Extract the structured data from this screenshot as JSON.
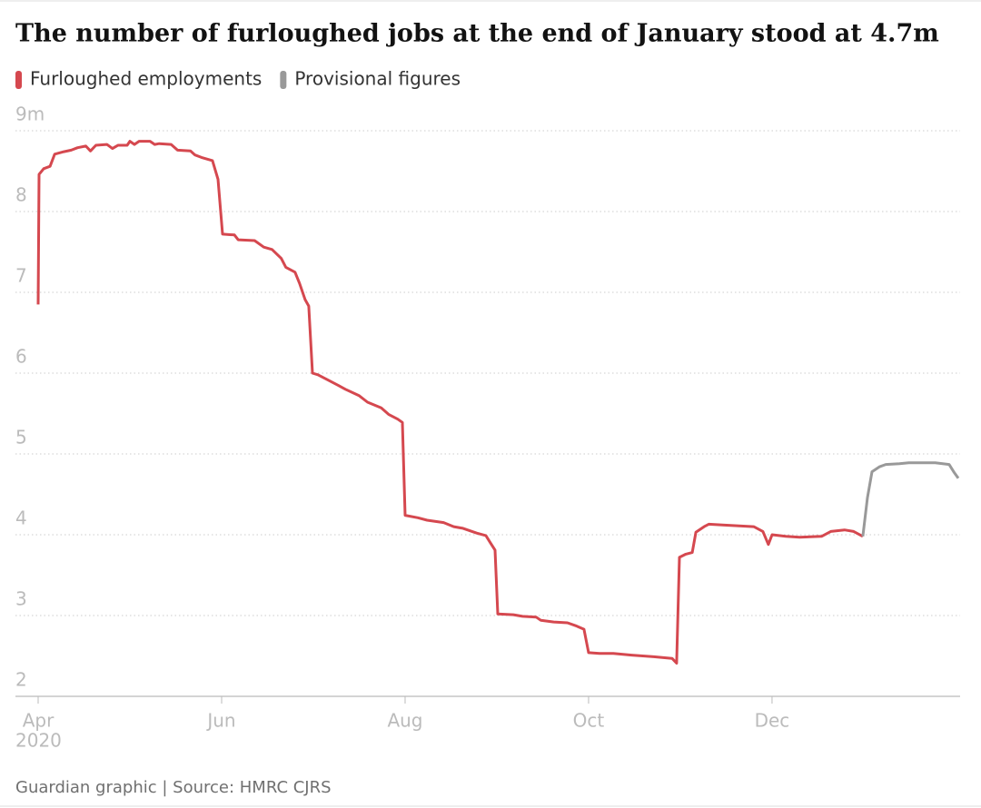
{
  "chart_data": {
    "type": "line",
    "title": "The number of furloughed jobs at the end of January stood at 4.7m",
    "source": "Guardian graphic | Source: HMRC CJRS",
    "xtick_year": "2020",
    "xlim": [
      0,
      10.05
    ],
    "xticks": [
      {
        "value": 0,
        "label": "Apr"
      },
      {
        "value": 2,
        "label": "Jun"
      },
      {
        "value": 4,
        "label": "Aug"
      },
      {
        "value": 6,
        "label": "Oct"
      },
      {
        "value": 8,
        "label": "Dec"
      }
    ],
    "ylim": [
      2,
      9
    ],
    "yticks": [
      2,
      3,
      4,
      5,
      6,
      7,
      8,
      {
        "value": 9,
        "label": "9m"
      }
    ],
    "grid": true,
    "series": [
      {
        "name": "Furloughed employments",
        "color": "#d5484f",
        "x": [
          0,
          0.01,
          0.06,
          0.13,
          0.18,
          0.28,
          0.36,
          0.43,
          0.52,
          0.57,
          0.63,
          0.75,
          0.81,
          0.87,
          0.97,
          1.0,
          1.05,
          1.1,
          1.22,
          1.27,
          1.32,
          1.45,
          1.52,
          1.66,
          1.71,
          1.78,
          1.9,
          1.96,
          2.01,
          2.14,
          2.18,
          2.36,
          2.46,
          2.55,
          2.65,
          2.7,
          2.8,
          2.85,
          2.91,
          2.95,
          2.99,
          3.05,
          3.15,
          3.27,
          3.35,
          3.5,
          3.59,
          3.74,
          3.82,
          3.92,
          3.97,
          4.0,
          4.14,
          4.24,
          4.42,
          4.53,
          4.63,
          4.78,
          4.88,
          4.93,
          4.98,
          5.01,
          5.18,
          5.28,
          5.43,
          5.48,
          5.62,
          5.77,
          5.87,
          5.95,
          6.0,
          6.12,
          6.27,
          6.47,
          6.71,
          6.91,
          6.96,
          6.99,
          7.06,
          7.13,
          7.17,
          7.26,
          7.31,
          7.46,
          7.8,
          7.9,
          7.96,
          8.0,
          8.15,
          8.3,
          8.54,
          8.64,
          8.79,
          8.89,
          8.99
        ],
        "values": [
          6.85,
          8.46,
          8.53,
          8.56,
          8.71,
          8.74,
          8.76,
          8.79,
          8.81,
          8.75,
          8.82,
          8.83,
          8.78,
          8.82,
          8.82,
          8.87,
          8.83,
          8.87,
          8.87,
          8.83,
          8.84,
          8.83,
          8.76,
          8.75,
          8.7,
          8.67,
          8.63,
          8.4,
          7.72,
          7.71,
          7.65,
          7.64,
          7.56,
          7.53,
          7.42,
          7.31,
          7.25,
          7.11,
          6.91,
          6.83,
          6.0,
          5.98,
          5.92,
          5.85,
          5.8,
          5.72,
          5.64,
          5.57,
          5.49,
          5.43,
          5.39,
          4.24,
          4.21,
          4.18,
          4.15,
          4.1,
          4.08,
          4.02,
          3.99,
          3.9,
          3.81,
          3.02,
          3.01,
          2.99,
          2.98,
          2.94,
          2.92,
          2.91,
          2.87,
          2.83,
          2.54,
          2.53,
          2.53,
          2.51,
          2.49,
          2.47,
          2.41,
          3.72,
          3.76,
          3.78,
          4.03,
          4.1,
          4.13,
          4.12,
          4.1,
          4.04,
          3.88,
          4.0,
          3.98,
          3.97,
          3.98,
          4.04,
          4.06,
          4.04,
          3.98
        ]
      },
      {
        "name": "Provisional figures",
        "color": "#999999",
        "x": [
          8.99,
          9.04,
          9.09,
          9.17,
          9.24,
          9.39,
          9.49,
          9.78,
          9.93,
          9.98,
          10.03
        ],
        "values": [
          3.98,
          4.46,
          4.78,
          4.84,
          4.87,
          4.88,
          4.89,
          4.89,
          4.87,
          4.78,
          4.7
        ]
      }
    ]
  }
}
